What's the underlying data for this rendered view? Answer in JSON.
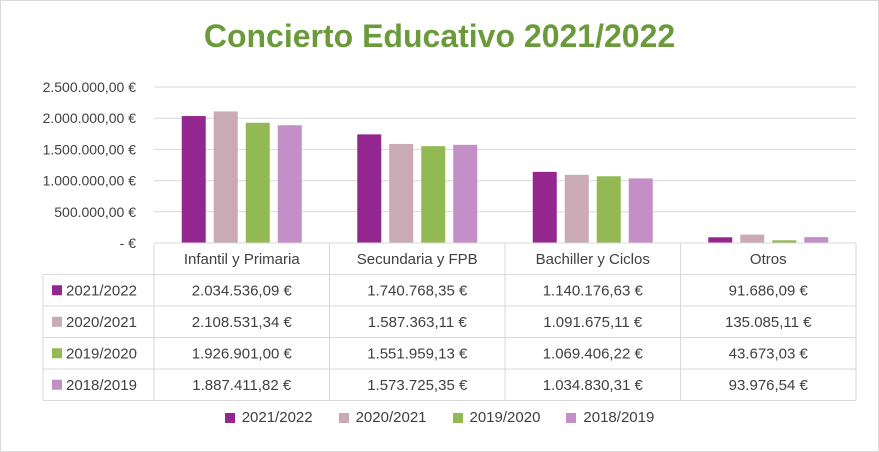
{
  "chart_data": {
    "type": "bar",
    "title": "Concierto Educativo 2021/2022",
    "categories": [
      "Infantil y Primaria",
      "Secundaria y FPB",
      "Bachiller y Ciclos",
      "Otros"
    ],
    "series": [
      {
        "name": "2021/2022",
        "color": "#93278f",
        "values": [
          2034536.09,
          1740768.35,
          1140176.63,
          91686.09
        ],
        "labels": [
          "2.034.536,09 €",
          "1.740.768,35 €",
          "1.140.176,63 €",
          "91.686,09 €"
        ]
      },
      {
        "name": "2020/2021",
        "color": "#c9aab5",
        "values": [
          2108531.34,
          1587363.11,
          1091675.11,
          135085.11
        ],
        "labels": [
          "2.108.531,34 €",
          "1.587.363,11 €",
          "1.091.675,11 €",
          "135.085,11 €"
        ]
      },
      {
        "name": "2019/2020",
        "color": "#92b954",
        "values": [
          1926901.0,
          1551959.13,
          1069406.22,
          43673.03
        ],
        "labels": [
          "1.926.901,00 €",
          "1.551.959,13 €",
          "1.069.406,22 €",
          "43.673,03 €"
        ]
      },
      {
        "name": "2018/2019",
        "color": "#c38fc6",
        "values": [
          1887411.82,
          1573725.35,
          1034830.31,
          93976.54
        ],
        "labels": [
          "1.887.411,82 €",
          "1.573.725,35 €",
          "1.034.830,31 €",
          "93.976,54 €"
        ]
      }
    ],
    "ylim": [
      0,
      2500000
    ],
    "yticks": [
      0,
      500000,
      1000000,
      1500000,
      2000000,
      2500000
    ],
    "ytick_labels": [
      "-   €",
      "500.000,00 €",
      "1.000.000,00 €",
      "1.500.000,00 €",
      "2.000.000,00 €",
      "2.500.000,00 €"
    ],
    "grid": true,
    "legend": "bottom",
    "data_table": true
  }
}
